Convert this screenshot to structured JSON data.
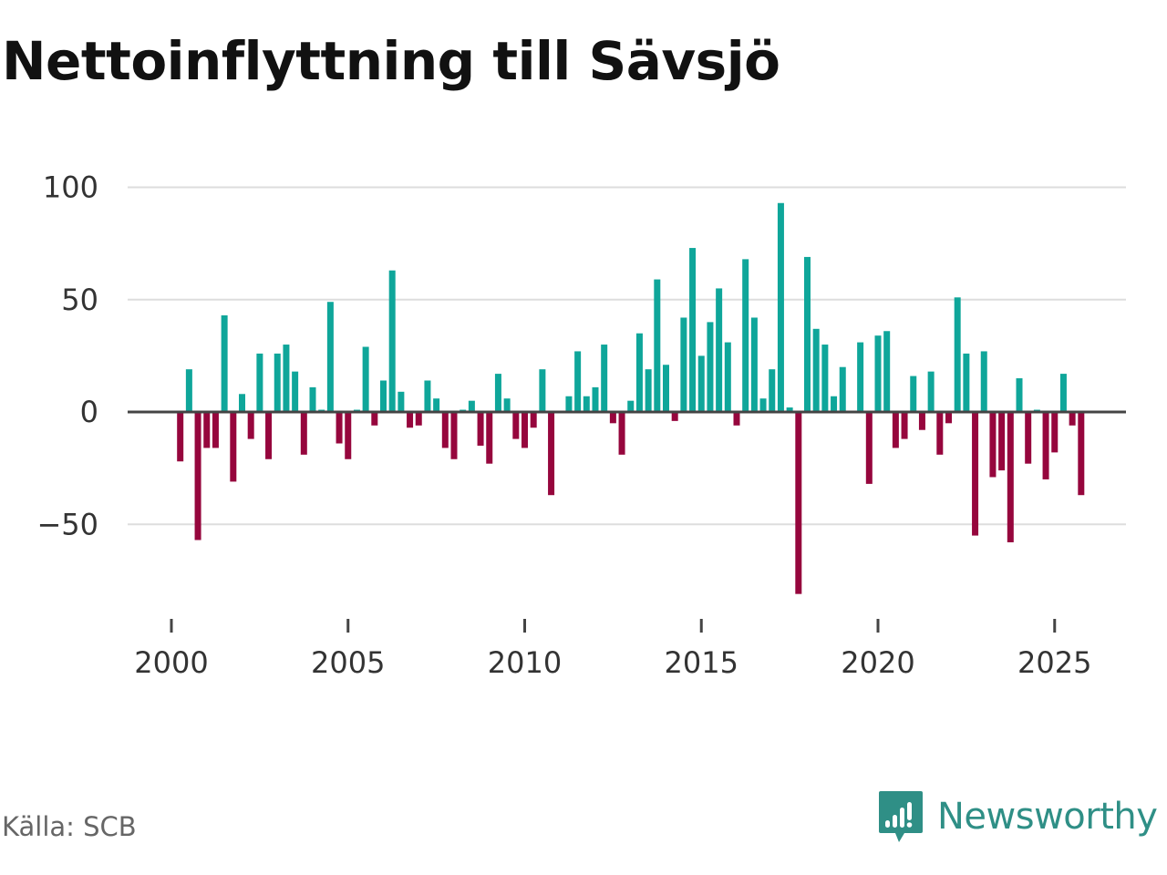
{
  "title": "Nettoinflyttning till Sävsjö",
  "source": "Källa: SCB",
  "brand": {
    "name": "Newsworthy",
    "icon": "newsworthy-logo-icon",
    "color": "#2f8f86"
  },
  "colors": {
    "positive": "#0fa69a",
    "negative": "#96063d",
    "grid": "#dddddd",
    "zero_line": "#444444",
    "axis_text": "#333333"
  },
  "chart_data": {
    "type": "bar",
    "title": "Nettoinflyttning till Sävsjö",
    "xlabel": "",
    "ylabel": "",
    "ylim": [
      -82,
      100
    ],
    "yticks": [
      100,
      50,
      0,
      -50
    ],
    "ytick_labels": [
      "100",
      "50",
      "0",
      "−50"
    ],
    "xticks": [
      2000,
      2005,
      2010,
      2015,
      2020,
      2025
    ],
    "xtick_labels": [
      "2000",
      "2005",
      "2010",
      "2015",
      "2020",
      "2025"
    ],
    "x_start": 2000.0,
    "x_step": 0.25,
    "grid": true,
    "values": [
      0,
      -22,
      19,
      -57,
      -16,
      -16,
      43,
      -31,
      8,
      -12,
      26,
      -21,
      26,
      30,
      18,
      -19,
      11,
      1,
      49,
      -14,
      -21,
      1,
      29,
      -6,
      14,
      63,
      9,
      -7,
      -6,
      14,
      6,
      -16,
      -21,
      1,
      5,
      -15,
      -23,
      17,
      6,
      -12,
      -16,
      -7,
      19,
      -37,
      0,
      7,
      27,
      7,
      11,
      30,
      -5,
      -19,
      5,
      35,
      19,
      59,
      21,
      -4,
      42,
      73,
      25,
      40,
      55,
      31,
      -6,
      68,
      42,
      6,
      19,
      93,
      2,
      -81,
      69,
      37,
      30,
      7,
      20,
      0,
      31,
      -32,
      34,
      36,
      -16,
      -12,
      16,
      -8,
      18,
      -19,
      -5,
      51,
      26,
      -55,
      27,
      -29,
      -26,
      -58,
      15,
      -23,
      1,
      -30,
      -18,
      17,
      -6,
      -37
    ]
  }
}
